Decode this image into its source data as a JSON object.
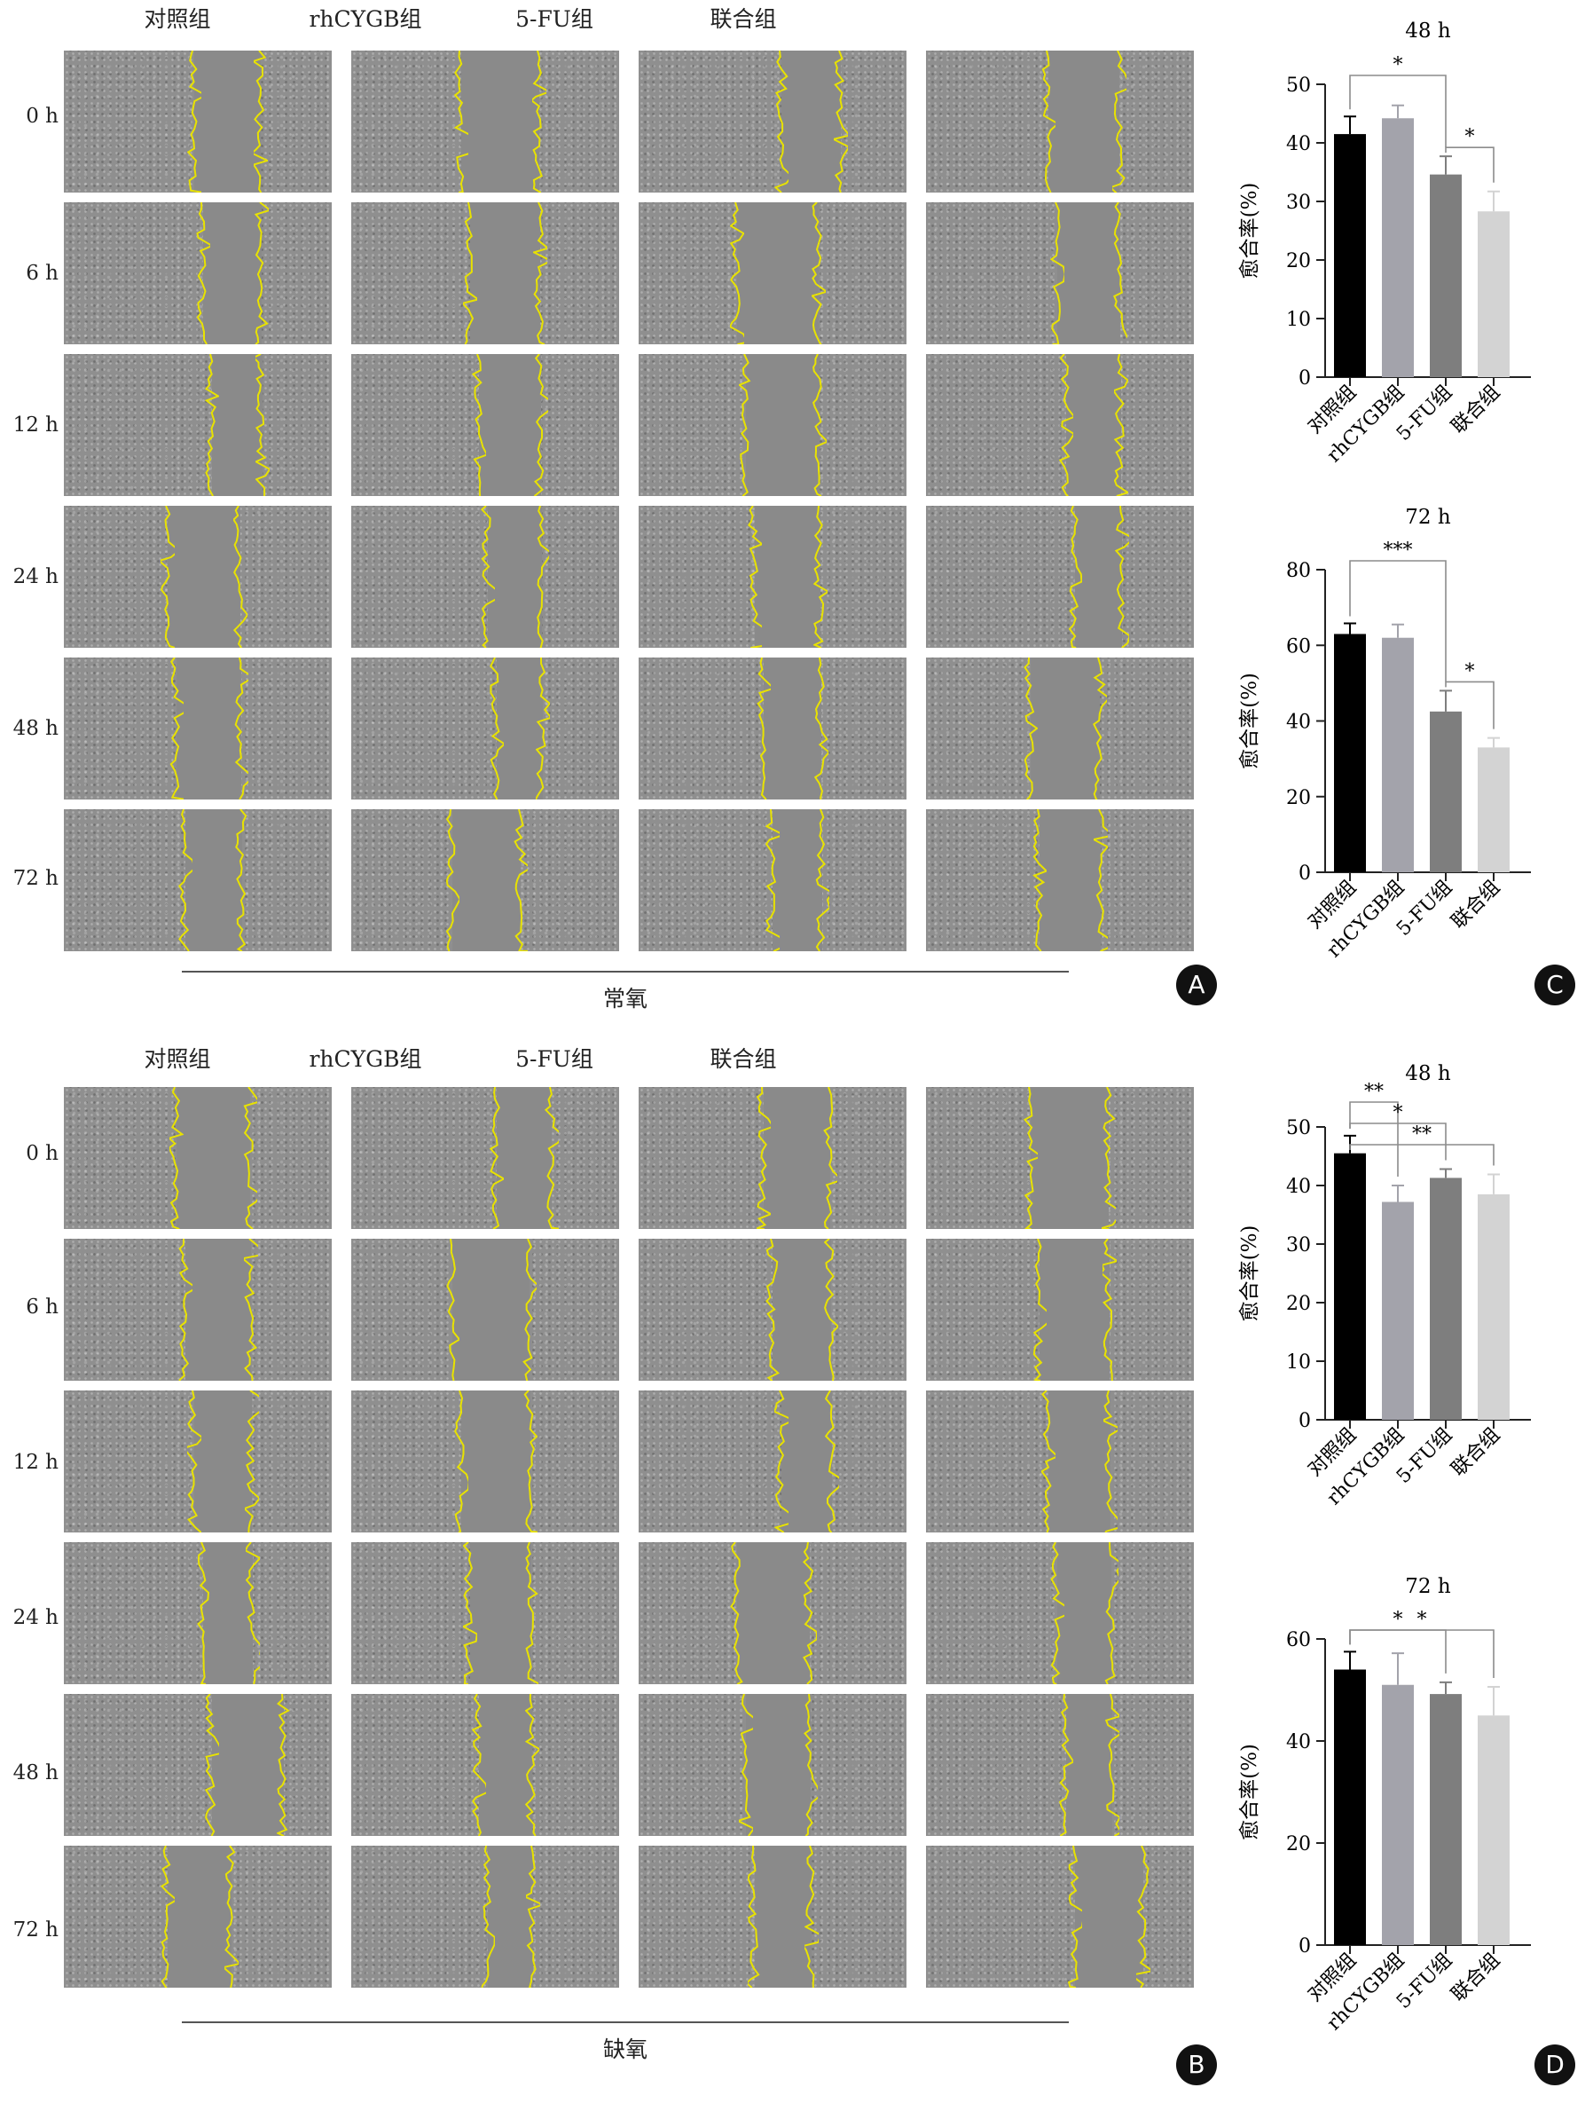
{
  "columns": [
    "对照组",
    "rhCYGB组",
    "5-FU组",
    "联合组"
  ],
  "rows": [
    "0 h",
    "6 h",
    "12 h",
    "24 h",
    "48 h",
    "72 h"
  ],
  "panels": [
    {
      "letter": "A",
      "condition": "常氧"
    },
    {
      "letter": "B",
      "condition": "缺氧"
    }
  ],
  "chart_letters": {
    "C": "C",
    "D": "D"
  },
  "colors": {
    "boundary": "#e8e200",
    "bars": [
      "#000000",
      "#a3a3ab",
      "#7e7e7e",
      "#d3d3d3"
    ]
  },
  "chart_data": [
    {
      "type": "bar",
      "title": "48 h",
      "ylabel": "愈合率(%)",
      "categories": [
        "对照组",
        "rhCYGB组",
        "5-FU组",
        "联合组"
      ],
      "values": [
        41.5,
        44.2,
        34.6,
        28.3
      ],
      "errors": [
        3.0,
        2.2,
        3.1,
        3.4
      ],
      "ylim": [
        0,
        50
      ],
      "yticks": [
        0,
        10,
        20,
        30,
        40,
        50
      ],
      "significance": [
        {
          "from": 0,
          "to": 2,
          "label": "*"
        },
        {
          "from": 2,
          "to": 3,
          "label": "*"
        }
      ]
    },
    {
      "type": "bar",
      "title": "72 h",
      "ylabel": "愈合率(%)",
      "categories": [
        "对照组",
        "rhCYGB组",
        "5-FU组",
        "联合组"
      ],
      "values": [
        63,
        62,
        42.5,
        33
      ],
      "errors": [
        2.8,
        3.5,
        5.5,
        2.5
      ],
      "ylim": [
        0,
        80
      ],
      "yticks": [
        0,
        20,
        40,
        60,
        80
      ],
      "significance": [
        {
          "from": 0,
          "to": 2,
          "label": "***"
        },
        {
          "from": 2,
          "to": 3,
          "label": "*"
        }
      ]
    },
    {
      "type": "bar",
      "title": "48 h",
      "ylabel": "愈合率(%)",
      "categories": [
        "对照组",
        "rhCYGB组",
        "5-FU组",
        "联合组"
      ],
      "values": [
        45.5,
        37.2,
        41.3,
        38.5
      ],
      "errors": [
        3.0,
        2.8,
        1.5,
        3.4
      ],
      "ylim": [
        0,
        50
      ],
      "yticks": [
        0,
        10,
        20,
        30,
        40,
        50
      ],
      "significance": [
        {
          "from": 0,
          "to": 1,
          "label": "**"
        },
        {
          "from": 0,
          "to": 2,
          "label": "*"
        },
        {
          "from": 0,
          "to": 3,
          "label": "**"
        }
      ]
    },
    {
      "type": "bar",
      "title": "72 h",
      "ylabel": "愈合率(%)",
      "categories": [
        "对照组",
        "rhCYGB组",
        "5-FU组",
        "联合组"
      ],
      "values": [
        54,
        51,
        49.2,
        45
      ],
      "errors": [
        3.5,
        6.2,
        2.3,
        5.6
      ],
      "ylim": [
        0,
        60
      ],
      "yticks": [
        0,
        20,
        40,
        60
      ],
      "significance": [
        {
          "from": 0,
          "to": 2,
          "label": "*"
        },
        {
          "from": 0,
          "to": 3,
          "label": "*"
        }
      ]
    }
  ]
}
